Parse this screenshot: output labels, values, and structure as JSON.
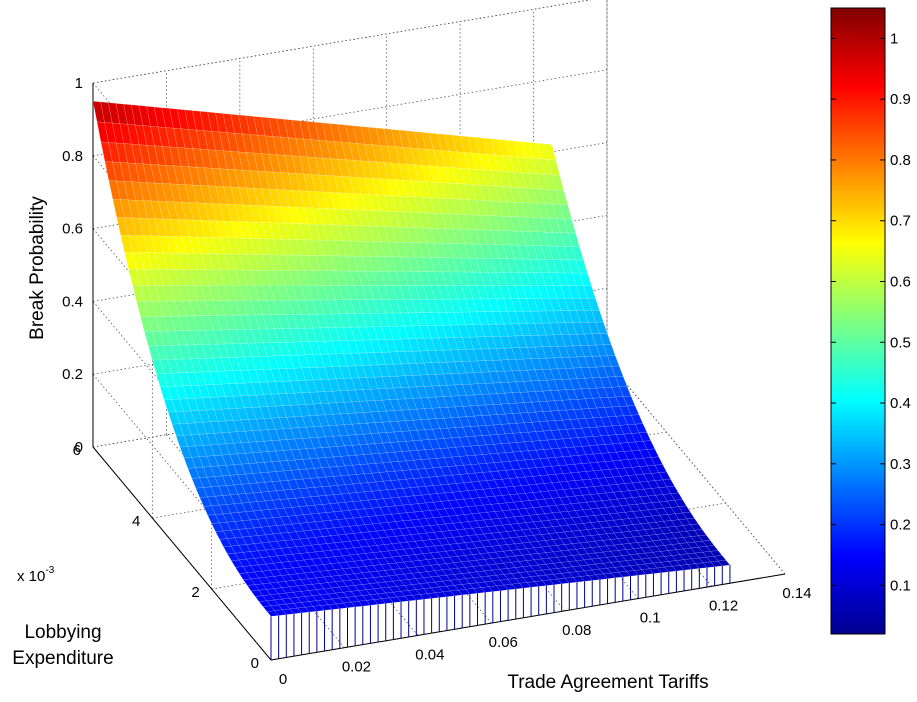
{
  "chart_data": {
    "type": "surface",
    "zlabel": "Break Probability",
    "xlabel": "Trade Agreement Tariffs",
    "ylabel_lines": [
      "Lobbying",
      "Expenditure"
    ],
    "y_exponent_base": "x 10",
    "y_exponent_power": "-3",
    "x_ticks": [
      "0",
      "0.02",
      "0.04",
      "0.06",
      "0.08",
      "0.1",
      "0.12",
      "0.14"
    ],
    "y_ticks": [
      "0",
      "2",
      "4",
      "6"
    ],
    "z_ticks": [
      "0",
      "0.2",
      "0.4",
      "0.6",
      "0.8",
      "1"
    ],
    "colorbar_ticks": [
      "0.1",
      "0.2",
      "0.3",
      "0.4",
      "0.5",
      "0.6",
      "0.7",
      "0.8",
      "0.9",
      "1"
    ],
    "xlim": [
      0,
      0.14
    ],
    "ylim": [
      0,
      0.006
    ],
    "zlim": [
      0,
      1
    ],
    "x_range": [
      0,
      0.125
    ],
    "y_range": [
      0,
      0.006
    ],
    "surface_corners": {
      "x0_y6": 0.95,
      "x0125_y6": 0.62,
      "x0_y0": 0.12,
      "x0125_y0": 0.05
    },
    "grid": true,
    "colormap": "jet",
    "colorbar_range": [
      0.02,
      1.05
    ]
  }
}
